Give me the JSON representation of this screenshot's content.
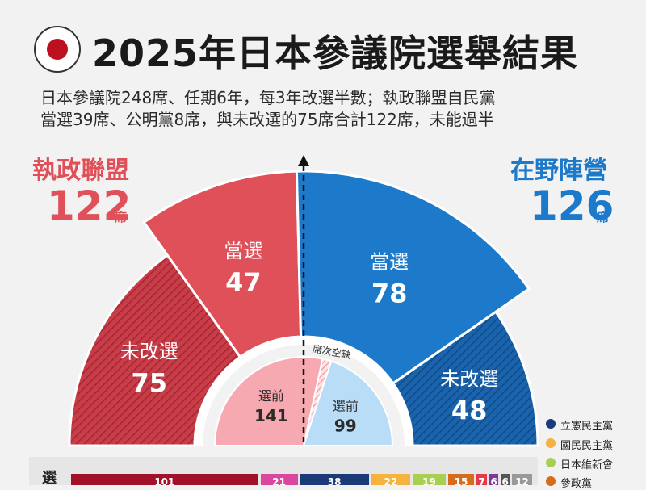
{
  "title": "2025年日本參議院選舉結果",
  "subtitle_lines": [
    "日本參議院248席、任期6年，每3年改選半數；執政聯盟自民黨",
    "當選39席、公明黨8席，與未改選的75席合計122席，未能過半"
  ],
  "ruling": {
    "label": "執政聯盟",
    "seats": "122",
    "unit": "席",
    "color": "#e05059"
  },
  "opposition": {
    "label": "在野陣營",
    "seats": "126",
    "unit": "席",
    "color": "#1d7acb"
  },
  "chart_data": {
    "type": "pie",
    "segments": [
      {
        "group": "執政聯盟",
        "label": "未改選",
        "value": 75,
        "color": "#c93d48",
        "hatched": true
      },
      {
        "group": "執政聯盟",
        "label": "當選",
        "value": 47,
        "color": "#e05059",
        "hatched": false
      },
      {
        "group": "在野陣營",
        "label": "當選",
        "value": 78,
        "color": "#1d7acb",
        "hatched": false
      },
      {
        "group": "在野陣營",
        "label": "未改選",
        "value": 48,
        "color": "#1a63ad",
        "hatched": true
      }
    ],
    "inner": [
      {
        "label": "選前",
        "value": 141,
        "color": "#f7a9b1"
      },
      {
        "label": "席次空缺",
        "value": 8,
        "color": "#f4c4c9",
        "hatched": true
      },
      {
        "label": "選前",
        "value": 99,
        "color": "#b9dcf7"
      }
    ]
  },
  "legend": [
    {
      "label": "立憲民主黨",
      "color": "#1c3a7a"
    },
    {
      "label": "國民民主黨",
      "color": "#f3b33e"
    },
    {
      "label": "日本維新會",
      "color": "#a9cf52"
    },
    {
      "label": "參政黨",
      "color": "#d86a1c"
    }
  ],
  "bottom": {
    "heading": "選",
    "bar": [
      {
        "value": "101",
        "color": "#a2112a"
      },
      {
        "value": "21",
        "color": "#d9489d"
      },
      {
        "value": "38",
        "color": "#1c3a7a"
      },
      {
        "value": "22",
        "color": "#f3b33e"
      },
      {
        "value": "19",
        "color": "#a9cf52"
      },
      {
        "value": "15",
        "color": "#d86a1c"
      },
      {
        "value": "7",
        "color": "#e3394a"
      },
      {
        "value": "6",
        "color": "#7a3c9c"
      },
      {
        "value": "6",
        "color": "#555555"
      },
      {
        "value": "12",
        "color": "#999999"
      }
    ]
  }
}
